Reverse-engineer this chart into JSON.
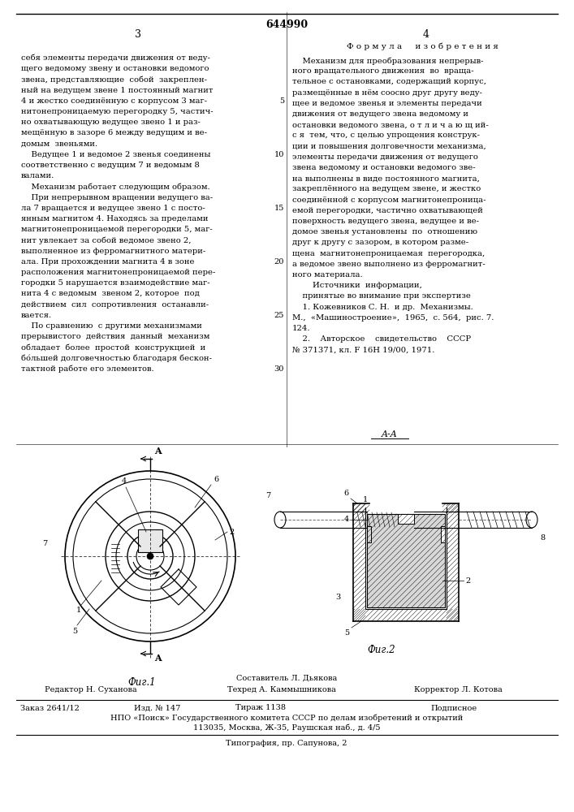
{
  "patent_number": "644990",
  "page_left": "3",
  "page_right": "4",
  "background_color": "#ffffff",
  "right_header": "Ф о р м у л а     и з о б р е т е н и я",
  "left_col_text": [
    "себя элементы передачи движения от веду-",
    "щего ведомому звену и остановки ведомого",
    "звена, представляющие  собой  закреплен-",
    "ный на ведущем звене 1 постоянный магнит",
    "4 и жестко соединённую с корпусом 3 маг-",
    "нитонепроницаемую перегородку 5, частич-",
    "но охватывающую ведущее звено 1 и раз-",
    "мещённую в зазоре 6 между ведущим и ве-",
    "домым  звеньями.",
    "    Ведущее 1 и ведомое 2 звенья соединены",
    "соответственно с ведущим 7 и ведомым 8",
    "валами.",
    "    Механизм работает следующим образом.",
    "    При непрерывном вращении ведущего ва-",
    "ла 7 вращается и ведущее звено 1 с посто-",
    "янным магнитом 4. Находясь за пределами",
    "магнитонепроницаемой перегородки 5, маг-",
    "нит увлекает за собой ведомое звено 2,",
    "выполненное из ферромагнитного матери-",
    "ала. При прохождении магнита 4 в зоне",
    "расположения магнитонепроницаемой пере-",
    "городки 5 нарушается взаимодействие маг-",
    "нита 4 с ведомым  звеном 2, которое  под",
    "действием  сил  сопротивления  останавли-",
    "вается.",
    "    По сравнению  с другими механизмами",
    "прерывистого  действия  данный  механизм",
    "обладает  более  простой  конструкцией  и",
    "бо́льшей долговечностью благодаря бескон-",
    "тактной работе его элементов."
  ],
  "right_col_text": [
    "    Механизм для преобразования непрерыв-",
    "ного вращательного движения  во  враща-",
    "тельное с остановками, содержащий корпус,",
    "размещённые в нём соосно друг другу веду-",
    "щее и ведомое звенья и элементы передачи",
    "движения от ведущего звена ведомому и",
    "остановки ведомого звена, о т л и ч а ю щ ий-",
    "с я  тем, что, с целью упрощения конструк-",
    "ции и повышения долговечности механизма,",
    "элементы передачи движения от ведущего",
    "звена ведомому и остановки ведомого зве-",
    "на выполнены в виде постоянного магнита,",
    "закреплённого на ведущем звене, и жестко",
    "соединённой с корпусом магнитонепроница-",
    "емой перегородки, частично охватывающей",
    "поверхность ведущего звена, ведущее и ве-",
    "домое звенья установлены  по  отношению",
    "друг к другу с зазором, в котором разме-",
    "щена  магнитонепроницаемая  перегородка,",
    "а ведомое звено выполнено из ферромагнит-",
    "ного материала.",
    "        Источники  информации,",
    "    принятые во внимание при экспертизе",
    "    1. Кожевников С. Н.  и др.  Механизмы.",
    "М.,  «Машиностроение»,  1965,  с. 564,  рис. 7.",
    "124.",
    "    2.    Авторское    свидетельство    СССР",
    "№ 371371, кл. F 16H 19/00, 1971."
  ],
  "line_numbers": [
    [
      4,
      "5"
    ],
    [
      9,
      "10"
    ],
    [
      14,
      "15"
    ],
    [
      19,
      "20"
    ],
    [
      24,
      "25"
    ],
    [
      29,
      "30"
    ]
  ],
  "fig1_caption": "Фиг.1",
  "fig2_caption": "Фиг.2",
  "fig2_header": "A-A",
  "footer_autor": "Составитель Л. Дьякова",
  "footer_editor": "Редактор Н. Суханова",
  "footer_tech": "Техред А. Каммышникова",
  "footer_corrector": "Корректор Л. Котова",
  "footer_order": "Заказ 2641/12",
  "footer_edition": "Изд. № 147",
  "footer_circulation": "Тираж 1138",
  "footer_subscription": "Подписное",
  "footer_npo": "НПО «Поиск» Государственного комитета СССР по делам изобретений и открытий",
  "footer_address": "113035, Москва, Ж-35, Раушская наб., д. 4/5",
  "footer_print": "Типография, пр. Сапунова, 2"
}
